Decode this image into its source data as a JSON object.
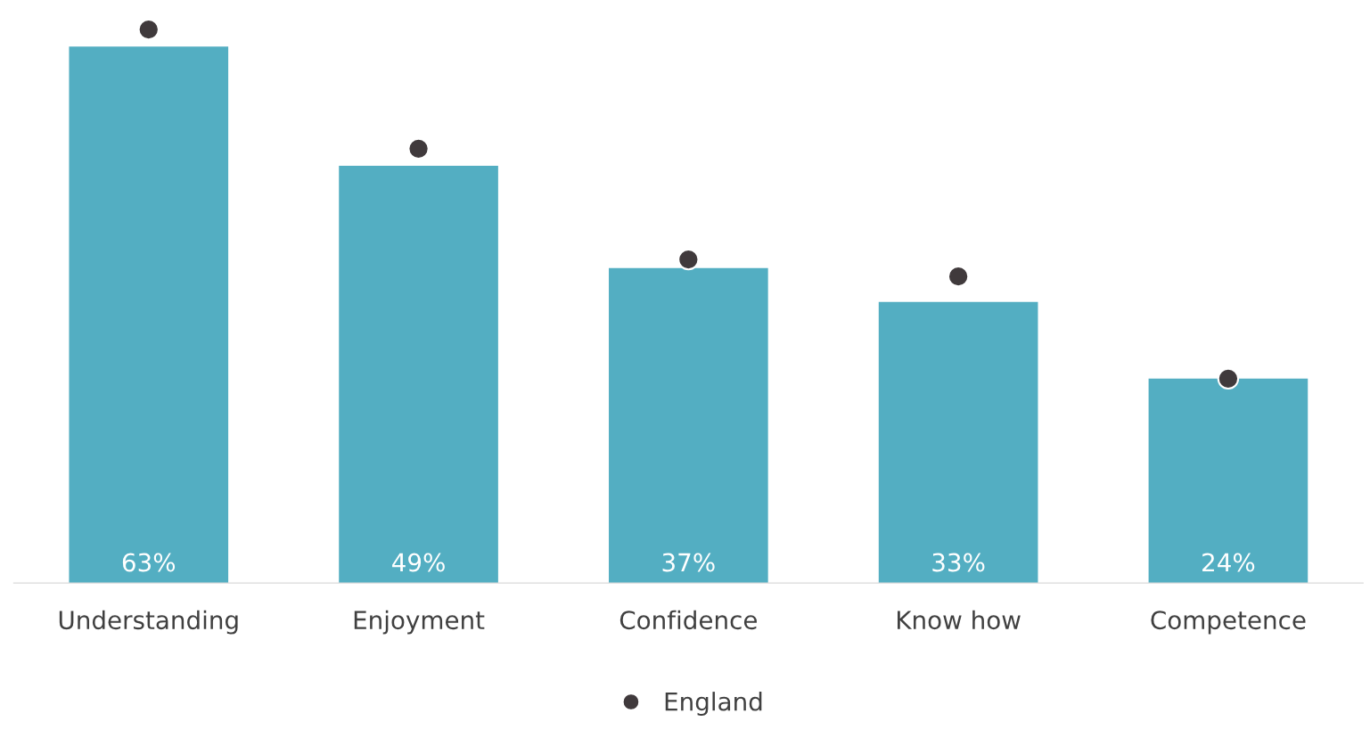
{
  "chart_data": {
    "type": "bar",
    "categories": [
      "Understanding",
      "Enjoyment",
      "Confidence",
      "Know how",
      "Competence"
    ],
    "series": [
      {
        "color": "#53aec2",
        "values": [
          63,
          49,
          37,
          33,
          24
        ],
        "value_labels": [
          "63%",
          "49%",
          "37%",
          "33%",
          "24%"
        ]
      },
      {
        "type": "scatter",
        "name": "England",
        "color": "#403a3c",
        "values": [
          65,
          51,
          38,
          36,
          24
        ],
        "marker": "circle"
      }
    ],
    "tick_labels": "x",
    "legend": "bottom"
  }
}
